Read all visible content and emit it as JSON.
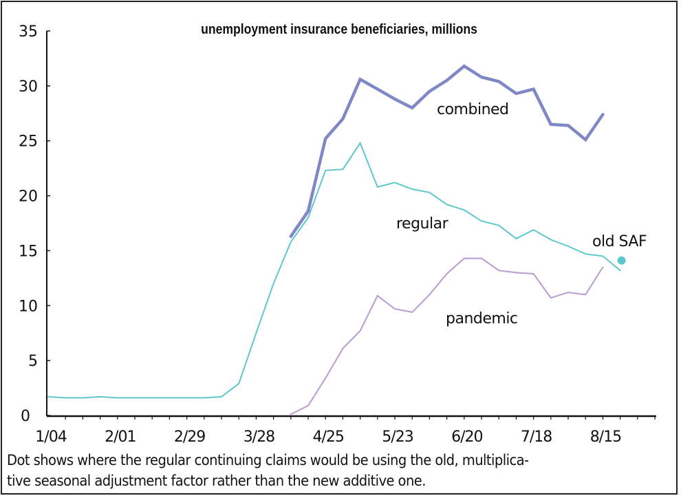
{
  "chart_data": {
    "type": "line",
    "title": "unemployment insurance beneficiaries, millions",
    "xlabel": "",
    "ylabel": "",
    "ylim": [
      0,
      35
    ],
    "yticks": [
      0,
      5,
      10,
      15,
      20,
      25,
      30,
      35
    ],
    "xtick_labels": [
      "1/04",
      "2/01",
      "2/29",
      "3/28",
      "4/25",
      "5/23",
      "6/20",
      "7/18",
      "8/15"
    ],
    "x": [
      "1/04",
      "1/11",
      "1/18",
      "1/25",
      "2/01",
      "2/08",
      "2/15",
      "2/22",
      "2/29",
      "3/07",
      "3/14",
      "3/21",
      "3/28",
      "4/04",
      "4/11",
      "4/18",
      "4/25",
      "5/02",
      "5/09",
      "5/16",
      "5/23",
      "5/30",
      "6/06",
      "6/13",
      "6/20",
      "6/27",
      "7/04",
      "7/11",
      "7/18",
      "7/25",
      "8/01",
      "8/08",
      "8/15",
      "8/22"
    ],
    "grid": false,
    "legend": "inline labels",
    "series": [
      {
        "name": "combined",
        "color": "#7f87c6",
        "values": [
          null,
          null,
          null,
          null,
          null,
          null,
          null,
          null,
          null,
          null,
          null,
          null,
          null,
          null,
          16.3,
          18.6,
          25.2,
          27.0,
          30.6,
          29.7,
          28.8,
          28.0,
          29.5,
          30.5,
          31.8,
          30.8,
          30.4,
          29.3,
          29.7,
          26.5,
          26.4,
          25.1,
          27.4,
          null
        ]
      },
      {
        "name": "regular",
        "color": "#5cc8cc",
        "values": [
          1.7,
          1.6,
          1.6,
          1.7,
          1.6,
          1.6,
          1.6,
          1.6,
          1.6,
          1.6,
          1.7,
          2.9,
          7.5,
          12.0,
          15.8,
          18.0,
          22.3,
          22.4,
          24.8,
          20.8,
          21.2,
          20.6,
          20.3,
          19.2,
          18.7,
          17.7,
          17.3,
          16.1,
          16.9,
          16.0,
          15.4,
          14.7,
          14.5,
          13.2
        ]
      },
      {
        "name": "pandemic",
        "color": "#b79bd2",
        "values": [
          null,
          null,
          null,
          null,
          null,
          null,
          null,
          null,
          null,
          null,
          null,
          null,
          null,
          null,
          0.1,
          0.9,
          3.4,
          6.1,
          7.7,
          10.9,
          9.7,
          9.4,
          11.0,
          12.9,
          14.3,
          14.3,
          13.2,
          13.0,
          12.9,
          10.7,
          11.2,
          11.0,
          13.5,
          null
        ]
      }
    ],
    "annotations": [
      {
        "label": "old SAF",
        "x": "8/22",
        "y": 14.1,
        "color": "#5cc8cc"
      }
    ]
  },
  "note": {
    "line1": "Dot shows where the regular continuing claims would be using the old, multiplica-",
    "line2": "tive seasonal adjustment factor rather than the new additive one."
  }
}
